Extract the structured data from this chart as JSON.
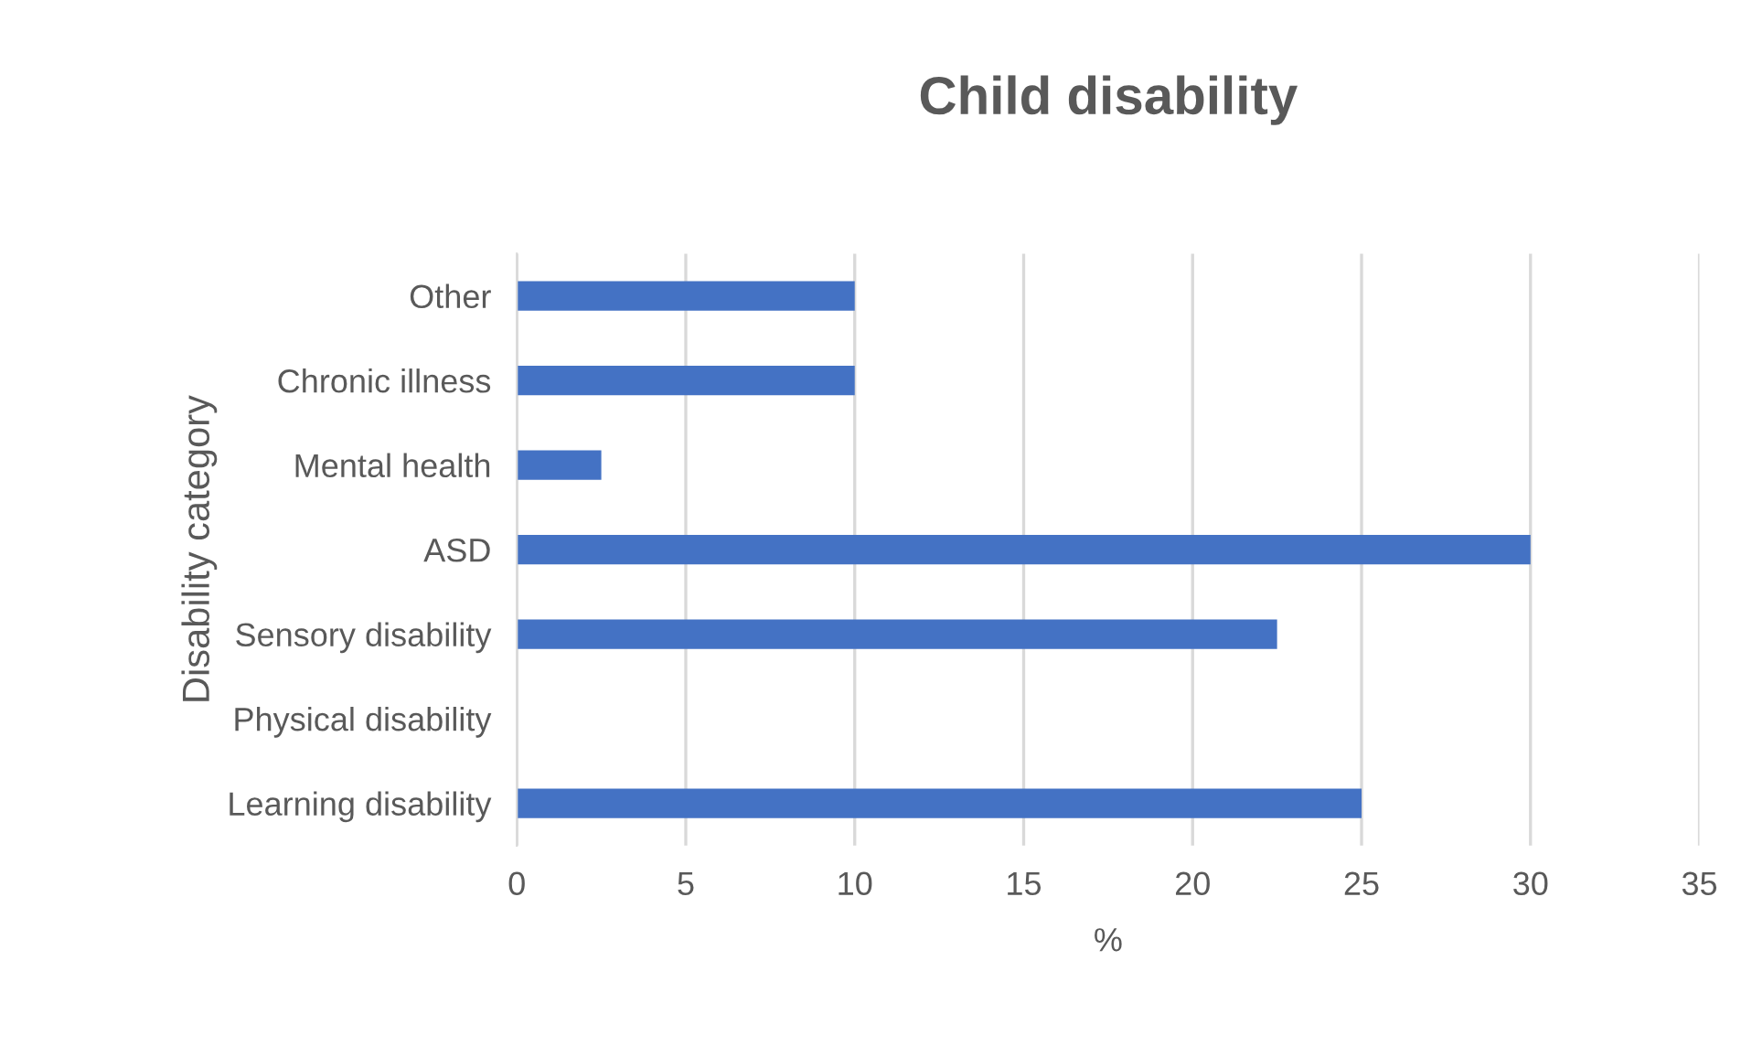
{
  "chart_data": {
    "type": "bar",
    "orientation": "horizontal",
    "title": "Child disability",
    "xlabel": "%",
    "ylabel": "Disability category",
    "categories": [
      "Other",
      "Chronic illness",
      "Mental health",
      "ASD",
      "Sensory disability",
      "Physical disability",
      "Learning disability"
    ],
    "values": [
      10,
      10,
      2.5,
      30,
      22.5,
      0,
      25
    ],
    "color": "#4472c4",
    "xlim": [
      0,
      35
    ],
    "xticks": [
      0,
      5,
      10,
      15,
      20,
      25,
      30,
      35
    ],
    "grid": "x"
  }
}
